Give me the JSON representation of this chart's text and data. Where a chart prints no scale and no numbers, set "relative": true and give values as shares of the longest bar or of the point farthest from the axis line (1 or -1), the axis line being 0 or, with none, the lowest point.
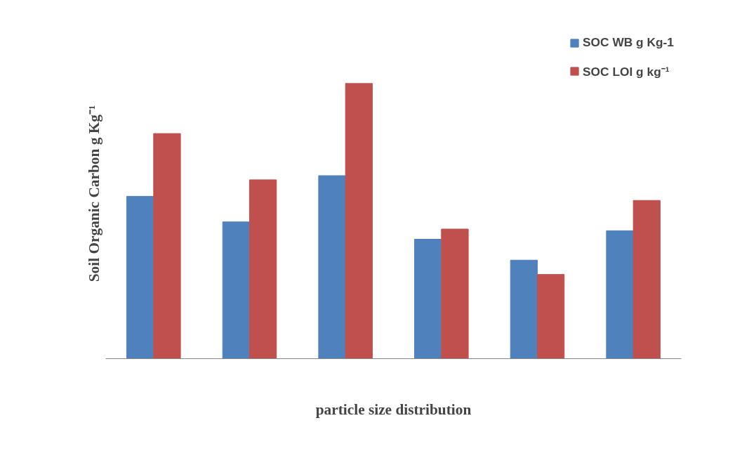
{
  "chart_data": {
    "type": "bar",
    "relative": true,
    "categories": [
      null,
      null,
      null,
      null,
      null,
      null
    ],
    "xlabel": "particle size distribution",
    "ylabel": "Soil Organic Carbon g Kg⁻¹",
    "legend": "top right",
    "series": [
      {
        "name": "SOC WB g Kg-1",
        "color": "#4f81bd",
        "values": [
          0.59,
          0.497,
          0.665,
          0.434,
          0.358,
          0.465
        ]
      },
      {
        "name": "SOC LOI g kg⁻¹",
        "color": "#c0504d",
        "values": [
          0.818,
          0.65,
          1,
          0.471,
          0.306,
          0.575
        ]
      }
    ]
  }
}
